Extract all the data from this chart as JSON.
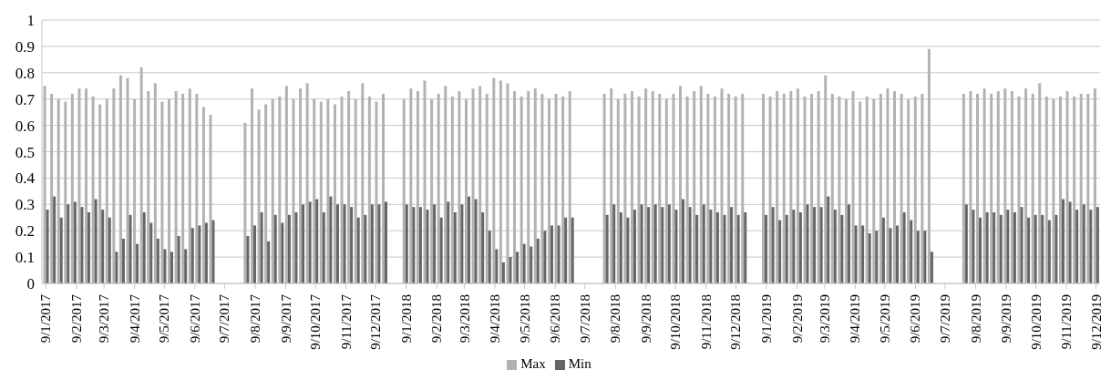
{
  "chart_data": {
    "type": "bar",
    "x": [
      "2017-01-09",
      "2017-01-16",
      "2017-01-23",
      "2017-01-30",
      "2017-02-06",
      "2017-02-13",
      "2017-02-20",
      "2017-02-27",
      "2017-03-06",
      "2017-03-13",
      "2017-03-20",
      "2017-03-27",
      "2017-04-03",
      "2017-04-10",
      "2017-04-17",
      "2017-04-24",
      "2017-05-01",
      "2017-05-08",
      "2017-05-15",
      "2017-05-22",
      "2017-05-29",
      "2017-06-05",
      "2017-06-12",
      "2017-06-19",
      "2017-06-26",
      "2017-07-31",
      "2017-08-07",
      "2017-08-14",
      "2017-08-21",
      "2017-08-28",
      "2017-09-04",
      "2017-09-11",
      "2017-09-18",
      "2017-09-25",
      "2017-10-02",
      "2017-10-09",
      "2017-10-16",
      "2017-10-23",
      "2017-10-30",
      "2017-11-06",
      "2017-11-13",
      "2017-11-20",
      "2017-11-27",
      "2017-12-04",
      "2017-12-11",
      "2017-12-18",
      "2018-01-08",
      "2018-01-15",
      "2018-01-22",
      "2018-01-29",
      "2018-02-05",
      "2018-02-12",
      "2018-02-19",
      "2018-02-26",
      "2018-03-05",
      "2018-03-12",
      "2018-03-19",
      "2018-03-26",
      "2018-04-02",
      "2018-04-09",
      "2018-04-16",
      "2018-04-23",
      "2018-04-30",
      "2018-05-07",
      "2018-05-14",
      "2018-05-21",
      "2018-05-28",
      "2018-06-04",
      "2018-06-11",
      "2018-06-18",
      "2018-06-25",
      "2018-07-30",
      "2018-08-06",
      "2018-08-13",
      "2018-08-20",
      "2018-08-27",
      "2018-09-03",
      "2018-09-10",
      "2018-09-17",
      "2018-09-24",
      "2018-10-01",
      "2018-10-08",
      "2018-10-15",
      "2018-10-22",
      "2018-10-29",
      "2018-11-05",
      "2018-11-12",
      "2018-11-19",
      "2018-11-26",
      "2018-12-03",
      "2018-12-10",
      "2018-12-17",
      "2019-01-07",
      "2019-01-14",
      "2019-01-21",
      "2019-01-28",
      "2019-02-04",
      "2019-02-11",
      "2019-02-18",
      "2019-02-25",
      "2019-03-04",
      "2019-03-11",
      "2019-03-18",
      "2019-03-25",
      "2019-04-01",
      "2019-04-08",
      "2019-04-15",
      "2019-04-22",
      "2019-04-29",
      "2019-05-06",
      "2019-05-13",
      "2019-05-20",
      "2019-05-27",
      "2019-06-03",
      "2019-06-10",
      "2019-06-17",
      "2019-06-24",
      "2019-07-29",
      "2019-08-05",
      "2019-08-12",
      "2019-08-19",
      "2019-08-26",
      "2019-09-02",
      "2019-09-09",
      "2019-09-16",
      "2019-09-23",
      "2019-09-30",
      "2019-10-07",
      "2019-10-14",
      "2019-10-21",
      "2019-10-28",
      "2019-11-04",
      "2019-11-11",
      "2019-11-18",
      "2019-11-25",
      "2019-12-02",
      "2019-12-09"
    ],
    "series": [
      {
        "name": "Max",
        "color": "#b2b2b2",
        "values": [
          0.75,
          0.72,
          0.7,
          0.69,
          0.72,
          0.74,
          0.74,
          0.71,
          0.68,
          0.7,
          0.74,
          0.79,
          0.78,
          0.7,
          0.82,
          0.73,
          0.76,
          0.69,
          0.7,
          0.73,
          0.72,
          0.74,
          0.72,
          0.67,
          0.64,
          0.61,
          0.74,
          0.66,
          0.68,
          0.7,
          0.71,
          0.75,
          0.7,
          0.74,
          0.76,
          0.7,
          0.69,
          0.7,
          0.68,
          0.71,
          0.73,
          0.7,
          0.76,
          0.71,
          0.69,
          0.72,
          0.7,
          0.74,
          0.73,
          0.77,
          0.7,
          0.72,
          0.75,
          0.71,
          0.73,
          0.7,
          0.74,
          0.75,
          0.72,
          0.78,
          0.77,
          0.76,
          0.73,
          0.71,
          0.73,
          0.74,
          0.72,
          0.7,
          0.72,
          0.71,
          0.73,
          0.72,
          0.74,
          0.7,
          0.72,
          0.73,
          0.71,
          0.74,
          0.73,
          0.72,
          0.7,
          0.72,
          0.75,
          0.71,
          0.73,
          0.75,
          0.72,
          0.71,
          0.74,
          0.72,
          0.71,
          0.72,
          0.72,
          0.71,
          0.73,
          0.72,
          0.73,
          0.74,
          0.71,
          0.72,
          0.73,
          0.79,
          0.72,
          0.71,
          0.7,
          0.73,
          0.69,
          0.71,
          0.7,
          0.72,
          0.74,
          0.73,
          0.72,
          0.7,
          0.71,
          0.72,
          0.89,
          0.72,
          0.73,
          0.72,
          0.74,
          0.72,
          0.73,
          0.74,
          0.73,
          0.71,
          0.74,
          0.72,
          0.76,
          0.71,
          0.7,
          0.71,
          0.73,
          0.71,
          0.72,
          0.72,
          0.74
        ]
      },
      {
        "name": "Min",
        "color": "#666666",
        "values": [
          0.28,
          0.33,
          0.25,
          0.3,
          0.31,
          0.29,
          0.27,
          0.32,
          0.28,
          0.25,
          0.12,
          0.17,
          0.26,
          0.15,
          0.27,
          0.23,
          0.17,
          0.13,
          0.12,
          0.18,
          0.13,
          0.21,
          0.22,
          0.23,
          0.24,
          0.18,
          0.22,
          0.27,
          0.16,
          0.26,
          0.23,
          0.26,
          0.27,
          0.3,
          0.31,
          0.32,
          0.27,
          0.33,
          0.3,
          0.3,
          0.29,
          0.25,
          0.26,
          0.3,
          0.3,
          0.31,
          0.3,
          0.29,
          0.29,
          0.28,
          0.3,
          0.25,
          0.31,
          0.27,
          0.3,
          0.33,
          0.32,
          0.27,
          0.2,
          0.13,
          0.08,
          0.1,
          0.12,
          0.15,
          0.14,
          0.17,
          0.2,
          0.22,
          0.22,
          0.25,
          0.25,
          0.26,
          0.3,
          0.27,
          0.25,
          0.28,
          0.3,
          0.29,
          0.3,
          0.29,
          0.3,
          0.28,
          0.32,
          0.29,
          0.26,
          0.3,
          0.28,
          0.27,
          0.26,
          0.29,
          0.26,
          0.27,
          0.26,
          0.29,
          0.24,
          0.26,
          0.28,
          0.27,
          0.3,
          0.29,
          0.29,
          0.33,
          0.28,
          0.26,
          0.3,
          0.22,
          0.22,
          0.19,
          0.2,
          0.25,
          0.21,
          0.22,
          0.27,
          0.24,
          0.2,
          0.2,
          0.12,
          0.3,
          0.28,
          0.25,
          0.27,
          0.27,
          0.26,
          0.28,
          0.27,
          0.29,
          0.25,
          0.26,
          0.26,
          0.24,
          0.26,
          0.32,
          0.31,
          0.28,
          0.3,
          0.28,
          0.29
        ]
      }
    ],
    "xlim": [
      "2017-01-05",
      "2019-12-13"
    ],
    "xticks": [
      {
        "value": "2017-01-09",
        "label": "9/1/2017"
      },
      {
        "value": "2017-02-09",
        "label": "9/2/2017"
      },
      {
        "value": "2017-03-09",
        "label": "9/3/2017"
      },
      {
        "value": "2017-04-09",
        "label": "9/4/2017"
      },
      {
        "value": "2017-05-09",
        "label": "9/5/2017"
      },
      {
        "value": "2017-06-09",
        "label": "9/6/2017"
      },
      {
        "value": "2017-07-09",
        "label": "9/7/2017"
      },
      {
        "value": "2017-08-09",
        "label": "9/8/2017"
      },
      {
        "value": "2017-09-09",
        "label": "9/9/2017"
      },
      {
        "value": "2017-10-09",
        "label": "9/10/2017"
      },
      {
        "value": "2017-11-09",
        "label": "9/11/2017"
      },
      {
        "value": "2017-12-09",
        "label": "9/12/2017"
      },
      {
        "value": "2018-01-09",
        "label": "9/1/2018"
      },
      {
        "value": "2018-02-09",
        "label": "9/2/2018"
      },
      {
        "value": "2018-03-09",
        "label": "9/3/2018"
      },
      {
        "value": "2018-04-09",
        "label": "9/4/2018"
      },
      {
        "value": "2018-05-09",
        "label": "9/5/2018"
      },
      {
        "value": "2018-06-09",
        "label": "9/6/2018"
      },
      {
        "value": "2018-07-09",
        "label": "9/7/2018"
      },
      {
        "value": "2018-08-09",
        "label": "9/8/2018"
      },
      {
        "value": "2018-09-09",
        "label": "9/9/2018"
      },
      {
        "value": "2018-10-09",
        "label": "9/10/2018"
      },
      {
        "value": "2018-11-09",
        "label": "9/11/2018"
      },
      {
        "value": "2018-12-09",
        "label": "9/12/2018"
      },
      {
        "value": "2019-01-09",
        "label": "9/1/2019"
      },
      {
        "value": "2019-02-09",
        "label": "9/2/2019"
      },
      {
        "value": "2019-03-09",
        "label": "9/3/2019"
      },
      {
        "value": "2019-04-09",
        "label": "9/4/2019"
      },
      {
        "value": "2019-05-09",
        "label": "9/5/2019"
      },
      {
        "value": "2019-06-09",
        "label": "9/6/2019"
      },
      {
        "value": "2019-07-09",
        "label": "9/7/2019"
      },
      {
        "value": "2019-08-09",
        "label": "9/8/2019"
      },
      {
        "value": "2019-09-09",
        "label": "9/9/2019"
      },
      {
        "value": "2019-10-09",
        "label": "9/10/2019"
      },
      {
        "value": "2019-11-09",
        "label": "9/11/2019"
      },
      {
        "value": "2019-12-09",
        "label": "9/12/2019"
      }
    ],
    "ylim": [
      0,
      1
    ],
    "yticks": [
      0,
      0.1,
      0.2,
      0.3,
      0.4,
      0.5,
      0.6,
      0.7,
      0.8,
      0.9,
      1
    ],
    "grid": "y",
    "legend": "bottom"
  }
}
